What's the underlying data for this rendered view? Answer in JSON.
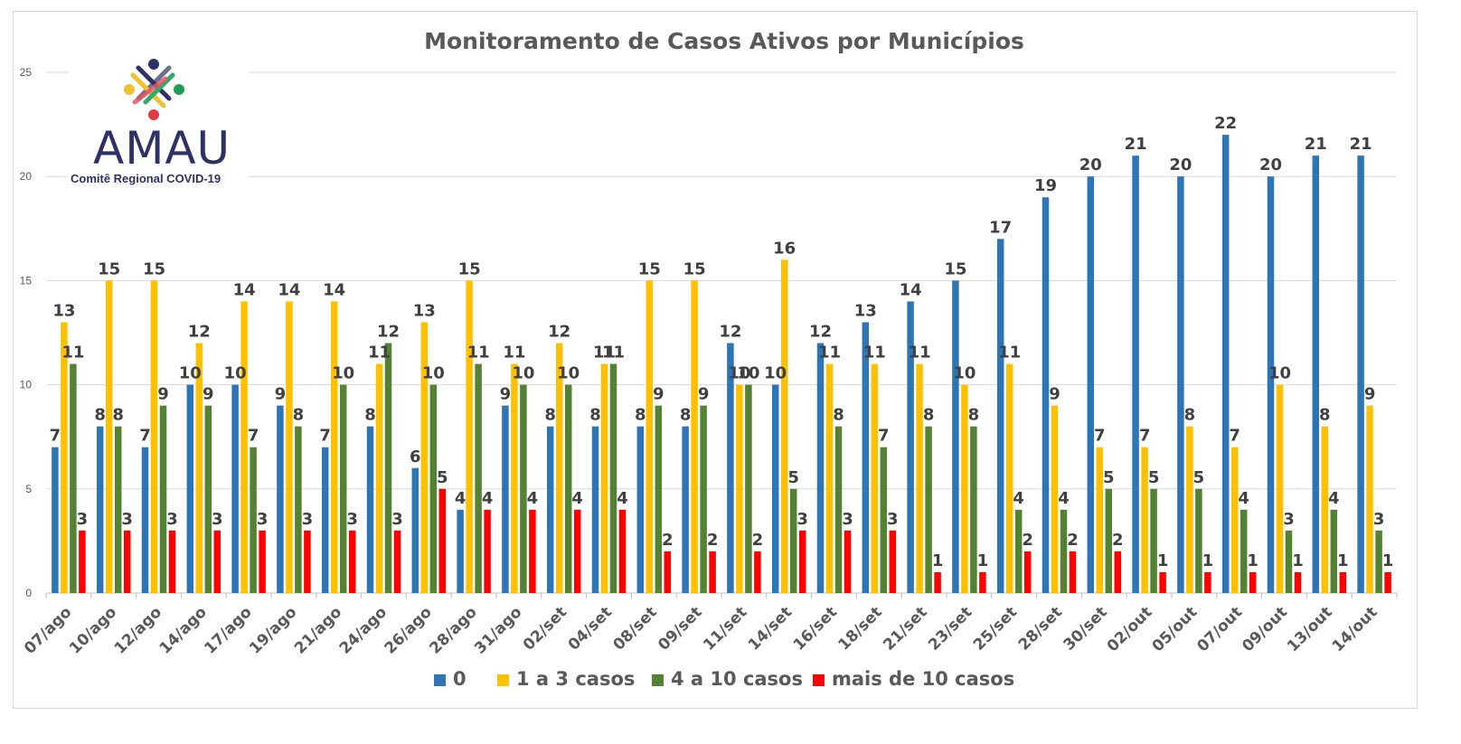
{
  "logo": {
    "name": "AMAU",
    "subtitle": "Comitê Regional COVID-19"
  },
  "chart_data": {
    "type": "bar",
    "title": "Monitoramento de Casos Ativos por Municípios",
    "xlabel": "",
    "ylabel": "",
    "ylim": [
      0,
      25
    ],
    "yticks": [
      0,
      5,
      10,
      15,
      20,
      25
    ],
    "grid": true,
    "legend_position": "bottom",
    "categories": [
      "07/ago",
      "10/ago",
      "12/ago",
      "14/ago",
      "17/ago",
      "19/ago",
      "21/ago",
      "24/ago",
      "26/ago",
      "28/ago",
      "31/ago",
      "02/set",
      "04/set",
      "08/set",
      "09/set",
      "11/set",
      "14/set",
      "16/set",
      "18/set",
      "21/set",
      "23/set",
      "25/set",
      "28/set",
      "30/set",
      "02/out",
      "05/out",
      "07/out",
      "09/out",
      "13/out",
      "14/out"
    ],
    "series": [
      {
        "name": "0",
        "color": "#2e75b6",
        "values": [
          7,
          8,
          7,
          10,
          10,
          9,
          7,
          8,
          6,
          4,
          9,
          8,
          8,
          8,
          8,
          12,
          10,
          12,
          13,
          14,
          15,
          17,
          19,
          20,
          21,
          20,
          22,
          20,
          21,
          21
        ]
      },
      {
        "name": "1 a 3 casos",
        "color": "#ffc000",
        "values": [
          13,
          15,
          15,
          12,
          14,
          14,
          14,
          11,
          13,
          15,
          11,
          12,
          11,
          15,
          15,
          10,
          16,
          11,
          11,
          11,
          10,
          11,
          9,
          7,
          7,
          8,
          7,
          10,
          8,
          9
        ]
      },
      {
        "name": "4 a 10 casos",
        "color": "#548235",
        "values": [
          11,
          8,
          9,
          9,
          7,
          8,
          10,
          12,
          10,
          11,
          10,
          10,
          11,
          9,
          9,
          10,
          5,
          8,
          7,
          8,
          8,
          4,
          4,
          5,
          5,
          5,
          4,
          3,
          4,
          3
        ]
      },
      {
        "name": "mais de 10 casos",
        "color": "#ff0000",
        "values": [
          3,
          3,
          3,
          3,
          3,
          3,
          3,
          3,
          5,
          4,
          4,
          4,
          4,
          2,
          2,
          2,
          3,
          3,
          3,
          1,
          1,
          2,
          2,
          2,
          1,
          1,
          1,
          1,
          1,
          1
        ]
      }
    ]
  }
}
